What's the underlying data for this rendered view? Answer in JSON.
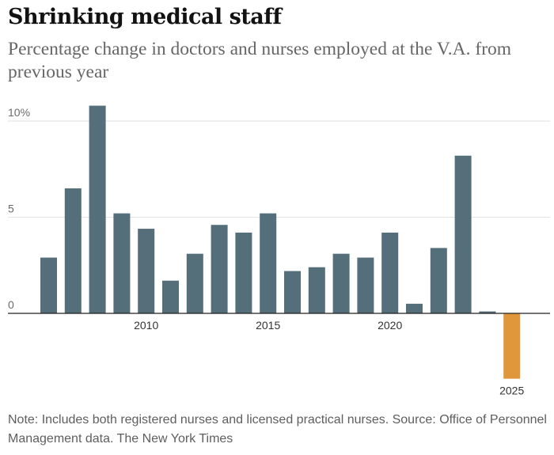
{
  "header": {
    "title": "Shrinking medical staff",
    "subtitle": "Percentage change in doctors and nurses employed at the V.A. from previous year"
  },
  "footer": {
    "note": "Note: Includes both registered nurses and licensed practical nurses. Source: Office of Personnel Management data. The New York Times"
  },
  "colors": {
    "bar": "#546e7a",
    "highlight": "#e0973c",
    "grid": "#e2e2e2",
    "baseline": "#222222"
  },
  "chart_data": {
    "type": "bar",
    "title": "Shrinking medical staff",
    "subtitle": "Percentage change in doctors and nurses employed at the V.A. from previous year",
    "xlabel": "",
    "ylabel": "",
    "categories": [
      "2006",
      "2007",
      "2008",
      "2009",
      "2010",
      "2011",
      "2012",
      "2013",
      "2014",
      "2015",
      "2016",
      "2017",
      "2018",
      "2019",
      "2020",
      "2021",
      "2022",
      "2023",
      "2024",
      "2025"
    ],
    "values": [
      2.9,
      6.5,
      10.8,
      5.2,
      4.4,
      1.7,
      3.1,
      4.6,
      4.2,
      5.2,
      2.2,
      2.4,
      3.1,
      2.9,
      4.2,
      0.5,
      3.4,
      8.2,
      0.1,
      -3.4
    ],
    "highlight_category": "2025",
    "yticks": [
      0,
      5,
      10
    ],
    "ytick_labels": [
      "0",
      "5",
      "10%"
    ],
    "xtick_labels": [
      {
        "category": "2010",
        "label": "2010"
      },
      {
        "category": "2015",
        "label": "2015"
      },
      {
        "category": "2020",
        "label": "2020"
      },
      {
        "category": "2025",
        "label": "2025"
      }
    ],
    "ylim": [
      -4,
      11
    ],
    "grid": true,
    "legend": "none"
  }
}
